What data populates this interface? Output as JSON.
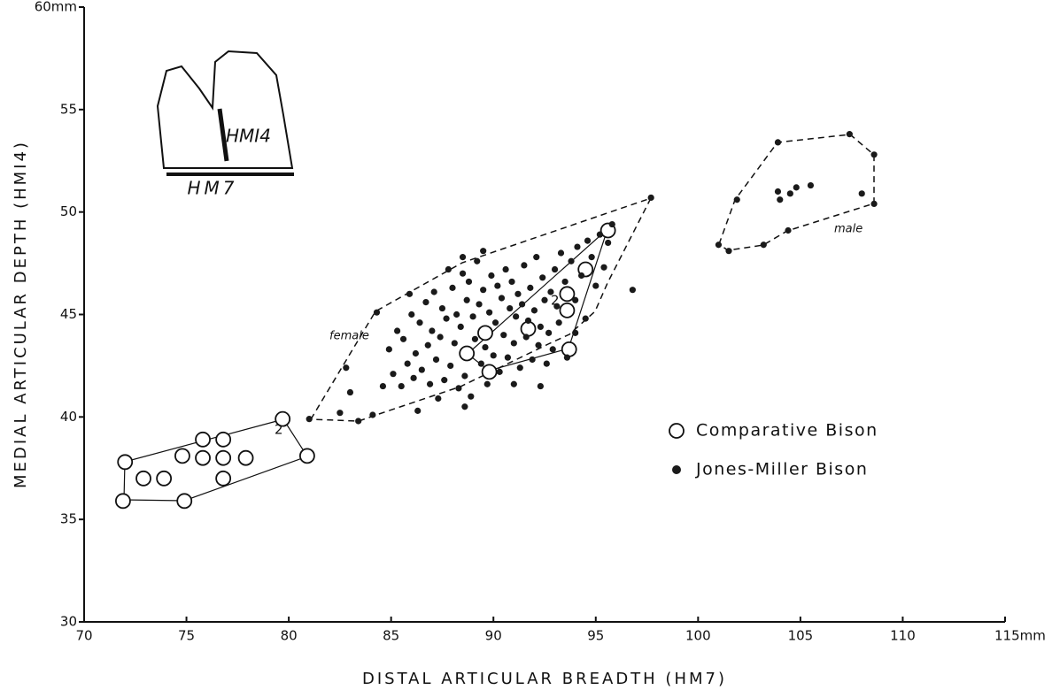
{
  "chart_data": {
    "type": "scatter",
    "x_label": "DISTAL ARTICULAR BREADTH (HM7)",
    "y_label": "MEDIAL ARTICULAR DEPTH (HMI4)",
    "xlim": [
      70,
      115
    ],
    "xticks": [
      70,
      75,
      80,
      85,
      90,
      95,
      100,
      105,
      110,
      {
        "value": 115,
        "label": "115mm"
      }
    ],
    "ylim": [
      30,
      60
    ],
    "yticks": [
      30,
      35,
      40,
      45,
      50,
      55,
      {
        "value": 60,
        "label": "60mm"
      }
    ],
    "grid": false,
    "legend": "right",
    "annotations": [
      "female",
      "male",
      "2",
      "2",
      "HMI4",
      "HM7"
    ],
    "series": [
      {
        "name": "Comparative Bison",
        "color": "#111111",
        "marker": "open",
        "x": [
          71.9,
          72.0,
          72.9,
          73.9,
          74.9,
          74.8,
          75.8,
          75.8,
          76.8,
          76.8,
          76.8,
          77.9,
          79.7,
          80.9,
          95.6,
          94.5,
          93.6,
          93.6,
          93.7,
          89.6,
          88.7,
          89.8,
          91.7
        ],
        "values": [
          35.9,
          37.8,
          37.0,
          37.0,
          35.9,
          38.1,
          38.0,
          38.9,
          37.0,
          38.0,
          38.9,
          38.0,
          39.9,
          38.1,
          49.1,
          47.2,
          46.0,
          45.2,
          43.3,
          44.1,
          43.1,
          42.2,
          44.3
        ]
      },
      {
        "name": "Jones-Miller Bison",
        "color": "#1a1a1a",
        "marker": "filled",
        "x": [
          81,
          82.5,
          83.4,
          84.1,
          84.3,
          82.8,
          83,
          97.7,
          96.8,
          94,
          84.9,
          85.1,
          85.3,
          85.5,
          85.6,
          85.8,
          86.0,
          86.1,
          86.2,
          86.4,
          86.5,
          86.7,
          86.8,
          86.9,
          87.0,
          87.1,
          87.2,
          87.4,
          87.5,
          87.6,
          87.7,
          87.9,
          88.0,
          88.1,
          88.2,
          88.3,
          88.4,
          88.5,
          88.6,
          88.7,
          88.8,
          88.9,
          89.0,
          89.1,
          89.2,
          89.3,
          89.4,
          89.5,
          89.6,
          89.7,
          89.8,
          89.9,
          90.0,
          90.1,
          90.2,
          90.3,
          90.4,
          90.5,
          90.6,
          90.7,
          90.8,
          90.9,
          91.0,
          91.1,
          91.2,
          91.3,
          91.4,
          91.5,
          91.6,
          91.7,
          91.8,
          91.9,
          92.0,
          92.1,
          92.2,
          92.3,
          92.4,
          92.5,
          92.6,
          92.7,
          92.8,
          92.9,
          93.0,
          93.1,
          93.2,
          93.3,
          93.5,
          93.6,
          93.8,
          94.0,
          94.1,
          94.3,
          94.5,
          94.6,
          94.8,
          95.0,
          95.2,
          95.4,
          95.6,
          95.8,
          86.3,
          87.3,
          88.6,
          84.6,
          85.9,
          87.8,
          88.5,
          91.0,
          92.3,
          89.5,
          101.0,
          101.5,
          101.9,
          103.9,
          103.2,
          103.9,
          104.0,
          104.5,
          104.8,
          105.5,
          104.4,
          107.4,
          108.6,
          108.0,
          108.6
        ],
        "values": [
          39.9,
          40.2,
          39.8,
          40.1,
          45.1,
          42.4,
          41.2,
          50.7,
          46.2,
          44.1,
          43.3,
          42.1,
          44.2,
          41.5,
          43.8,
          42.6,
          45.0,
          41.9,
          43.1,
          44.6,
          42.3,
          45.6,
          43.5,
          41.6,
          44.2,
          46.1,
          42.8,
          43.9,
          45.3,
          41.8,
          44.8,
          42.5,
          46.3,
          43.6,
          45.0,
          41.4,
          44.4,
          47.0,
          42.0,
          45.7,
          46.6,
          41.0,
          44.9,
          43.8,
          47.6,
          45.5,
          42.6,
          46.2,
          43.4,
          41.6,
          45.1,
          46.9,
          43.0,
          44.6,
          46.4,
          42.2,
          45.8,
          44.0,
          47.2,
          42.9,
          45.3,
          46.6,
          43.6,
          44.9,
          46.0,
          42.4,
          45.5,
          47.4,
          43.9,
          44.7,
          46.3,
          42.8,
          45.2,
          47.8,
          43.5,
          44.4,
          46.8,
          45.7,
          42.6,
          44.1,
          46.1,
          43.3,
          47.2,
          45.4,
          44.6,
          48.0,
          46.6,
          42.9,
          47.6,
          45.7,
          48.3,
          46.9,
          44.8,
          48.6,
          47.8,
          46.4,
          48.9,
          47.3,
          48.5,
          49.4,
          40.3,
          40.9,
          40.5,
          41.5,
          46.0,
          47.2,
          47.8,
          41.6,
          41.5,
          48.1,
          48.4,
          48.1,
          50.6,
          53.4,
          48.4,
          51.0,
          50.6,
          50.9,
          51.2,
          51.3,
          49.1,
          53.8,
          52.8,
          50.9,
          50.4
        ]
      }
    ]
  }
}
